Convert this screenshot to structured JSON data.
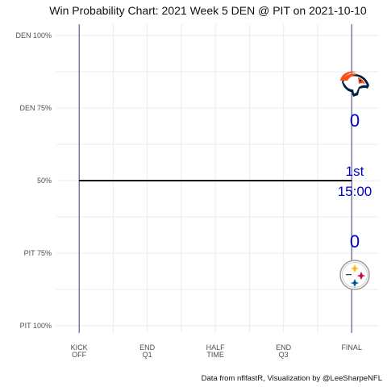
{
  "chart_data": {
    "type": "line",
    "title": "Win Probability Chart: 2021 Week 5 DEN @ PIT on 2021-10-10",
    "caption": "Data from nflfastR, Visualization by @LeeSharpeNFL",
    "xlabel": "",
    "ylabel": "",
    "x_ticks": [
      {
        "value": 0,
        "lines": [
          "KICK",
          "OFF"
        ]
      },
      {
        "value": 15,
        "lines": [
          "END",
          "Q1"
        ]
      },
      {
        "value": 30,
        "lines": [
          "HALF",
          "TIME"
        ]
      },
      {
        "value": 45,
        "lines": [
          "END",
          "Q3"
        ]
      },
      {
        "value": 60,
        "lines": [
          "FINAL"
        ]
      }
    ],
    "xlim": [
      -5,
      66
    ],
    "y_ticks": [
      {
        "value": 1.0,
        "label": "DEN 100%"
      },
      {
        "value": 0.75,
        "label": "DEN 75%"
      },
      {
        "value": 0.5,
        "label": "50%"
      },
      {
        "value": 0.25,
        "label": "PIT 75%"
      },
      {
        "value": -0.0,
        "label": "PIT 100%"
      }
    ],
    "ylim": [
      0,
      1
    ],
    "series": [
      {
        "x": [
          0,
          60
        ],
        "y": [
          0.5,
          0.5
        ],
        "color": "#000000"
      }
    ],
    "grid": true,
    "away": {
      "team": "DEN",
      "score": "0"
    },
    "home": {
      "team": "PIT",
      "score": "0"
    },
    "game_state": {
      "quarter": "1st",
      "clock": "15:00"
    },
    "colors": {
      "annotation": "#0000cc",
      "reference_lines": "#3b3b8a",
      "grid": "#ebebeb",
      "broncos_orange": "#fb4f14",
      "broncos_navy": "#002244",
      "steelers_yellow": "#ffb612",
      "steelers_red": "#c60c30",
      "steelers_blue": "#00539b"
    },
    "logos": [
      {
        "team": "DEN",
        "icon": "broncos-logo-icon"
      },
      {
        "team": "PIT",
        "icon": "steelers-logo-icon"
      }
    ]
  }
}
